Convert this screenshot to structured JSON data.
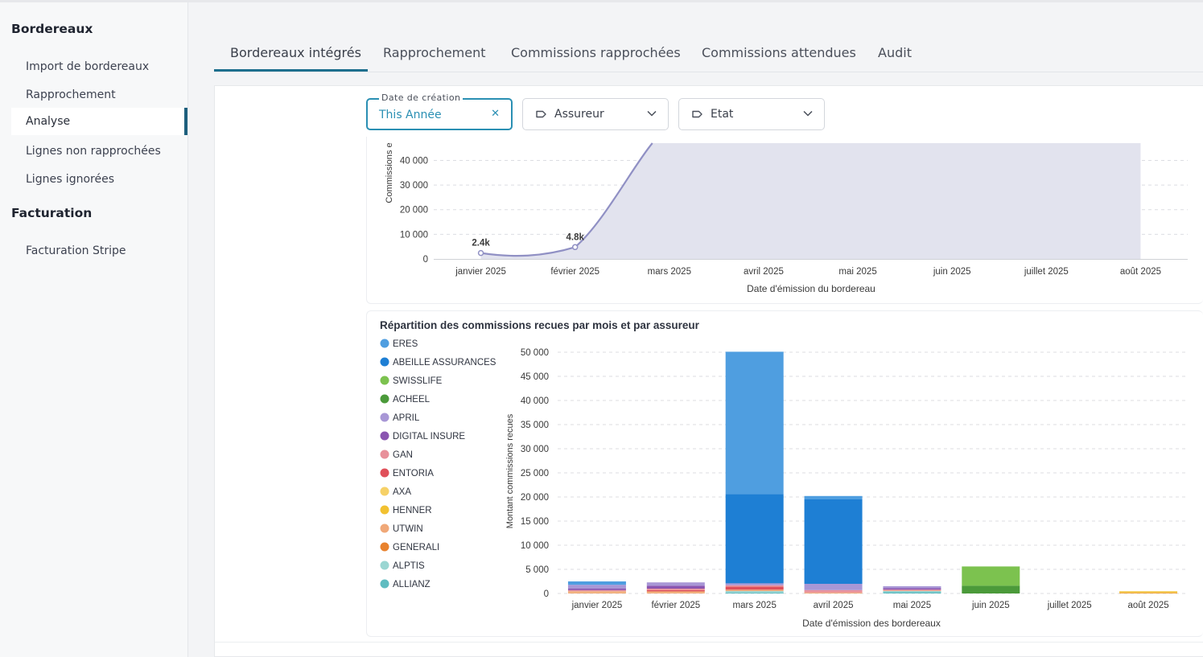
{
  "sidebar": {
    "sections": [
      {
        "title": "Bordereaux",
        "items": [
          "Import de bordereaux",
          "Rapprochement",
          "Analyse",
          "Lignes non rapprochées",
          "Lignes ignorées"
        ]
      },
      {
        "title": "Facturation",
        "items": [
          "Facturation Stripe"
        ]
      }
    ],
    "active_item": "Analyse"
  },
  "tabs": [
    {
      "label": "Bordereaux intégrés",
      "active": true
    },
    {
      "label": "Rapprochement",
      "active": false
    },
    {
      "label": "Commissions rapprochées",
      "active": false
    },
    {
      "label": "Commissions attendues",
      "active": false
    },
    {
      "label": "Audit",
      "active": false
    }
  ],
  "filters": {
    "date": {
      "label": "Date de création",
      "value": "This Année",
      "clear_icon": "close-icon"
    },
    "insurer": {
      "label": "Assureur",
      "icon": "tag-icon"
    },
    "state": {
      "label": "Etat",
      "icon": "tag-icon"
    }
  },
  "colors": {
    "accent": "#1d6f8e",
    "filter_accent": "#2a8fb3",
    "line": "#9090c4",
    "area": "#e2e3ee"
  },
  "chart_data": [
    {
      "type": "area",
      "title": "",
      "ylabel": "Commissions e",
      "xlabel": "Date d'émission du bordereau",
      "categories": [
        "janvier 2025",
        "février 2025",
        "mars 2025",
        "avril 2025",
        "mai 2025",
        "juin 2025",
        "juillet 2025",
        "août 2025"
      ],
      "yticks": [
        "0",
        "10 000",
        "20 000",
        "30 000",
        "40 000"
      ],
      "visible_ylim": [
        0,
        47000
      ],
      "series": [
        {
          "values": [
            2400,
            4800,
            null,
            null,
            null,
            null,
            null,
            null
          ]
        }
      ],
      "data_labels": [
        "2.4k",
        "4.8k"
      ],
      "note_visible": "curve rises off the top of the visible area after février 2025; filled area extends to août 2025",
      "grid": true
    },
    {
      "type": "bar",
      "stacked": true,
      "title": "Répartition des commissions recues par mois et par assureur",
      "ylabel": "Montant commissions recues",
      "xlabel": "Date d'émission des bordereaux",
      "categories": [
        "janvier 2025",
        "février 2025",
        "mars 2025",
        "avril 2025",
        "mai 2025",
        "juin 2025",
        "juillet 2025",
        "août 2025"
      ],
      "yticks": [
        "0",
        "5 000",
        "10 000",
        "15 000",
        "20 000",
        "25 000",
        "30 000",
        "35 000",
        "40 000",
        "45 000",
        "50 000"
      ],
      "ylim": [
        0,
        50000
      ],
      "legend_position": "left",
      "grid": true,
      "series": [
        {
          "name": "ERES",
          "color": "#4f9ee0",
          "values": [
            700,
            0,
            29500,
            700,
            0,
            0,
            0,
            0
          ]
        },
        {
          "name": "ABEILLE ASSURANCES",
          "color": "#1e7fd4",
          "values": [
            0,
            0,
            18500,
            17500,
            0,
            0,
            0,
            0
          ]
        },
        {
          "name": "SWISSLIFE",
          "color": "#7cc24f",
          "values": [
            0,
            0,
            0,
            0,
            0,
            4000,
            0,
            0
          ]
        },
        {
          "name": "ACHEEL",
          "color": "#4b9a3a",
          "values": [
            0,
            0,
            0,
            0,
            0,
            1600,
            0,
            0
          ]
        },
        {
          "name": "APRIL",
          "color": "#a897d6",
          "values": [
            800,
            700,
            400,
            1300,
            400,
            0,
            0,
            0
          ]
        },
        {
          "name": "DIGITAL INSURE",
          "color": "#8a55b0",
          "values": [
            300,
            600,
            0,
            0,
            300,
            0,
            0,
            0
          ]
        },
        {
          "name": "GAN",
          "color": "#e8909a",
          "values": [
            300,
            300,
            300,
            500,
            200,
            0,
            0,
            0
          ]
        },
        {
          "name": "ENTORIA",
          "color": "#e0505a",
          "values": [
            0,
            300,
            600,
            0,
            0,
            0,
            0,
            0
          ]
        },
        {
          "name": "AXA",
          "color": "#f6d167",
          "values": [
            100,
            100,
            0,
            0,
            0,
            0,
            0,
            200
          ]
        },
        {
          "name": "HENNER",
          "color": "#f2c130",
          "values": [
            0,
            0,
            0,
            0,
            0,
            0,
            0,
            200
          ]
        },
        {
          "name": "UTWIN",
          "color": "#f0a878",
          "values": [
            300,
            300,
            300,
            200,
            100,
            0,
            0,
            0
          ]
        },
        {
          "name": "GENERALI",
          "color": "#e8822e",
          "values": [
            0,
            0,
            0,
            0,
            0,
            0,
            0,
            100
          ]
        },
        {
          "name": "ALPTIS",
          "color": "#9ad6d2",
          "values": [
            0,
            0,
            300,
            0,
            200,
            0,
            0,
            0
          ]
        },
        {
          "name": "ALLIANZ",
          "color": "#5fbcc0",
          "values": [
            0,
            0,
            200,
            0,
            300,
            0,
            0,
            0
          ]
        }
      ]
    }
  ]
}
